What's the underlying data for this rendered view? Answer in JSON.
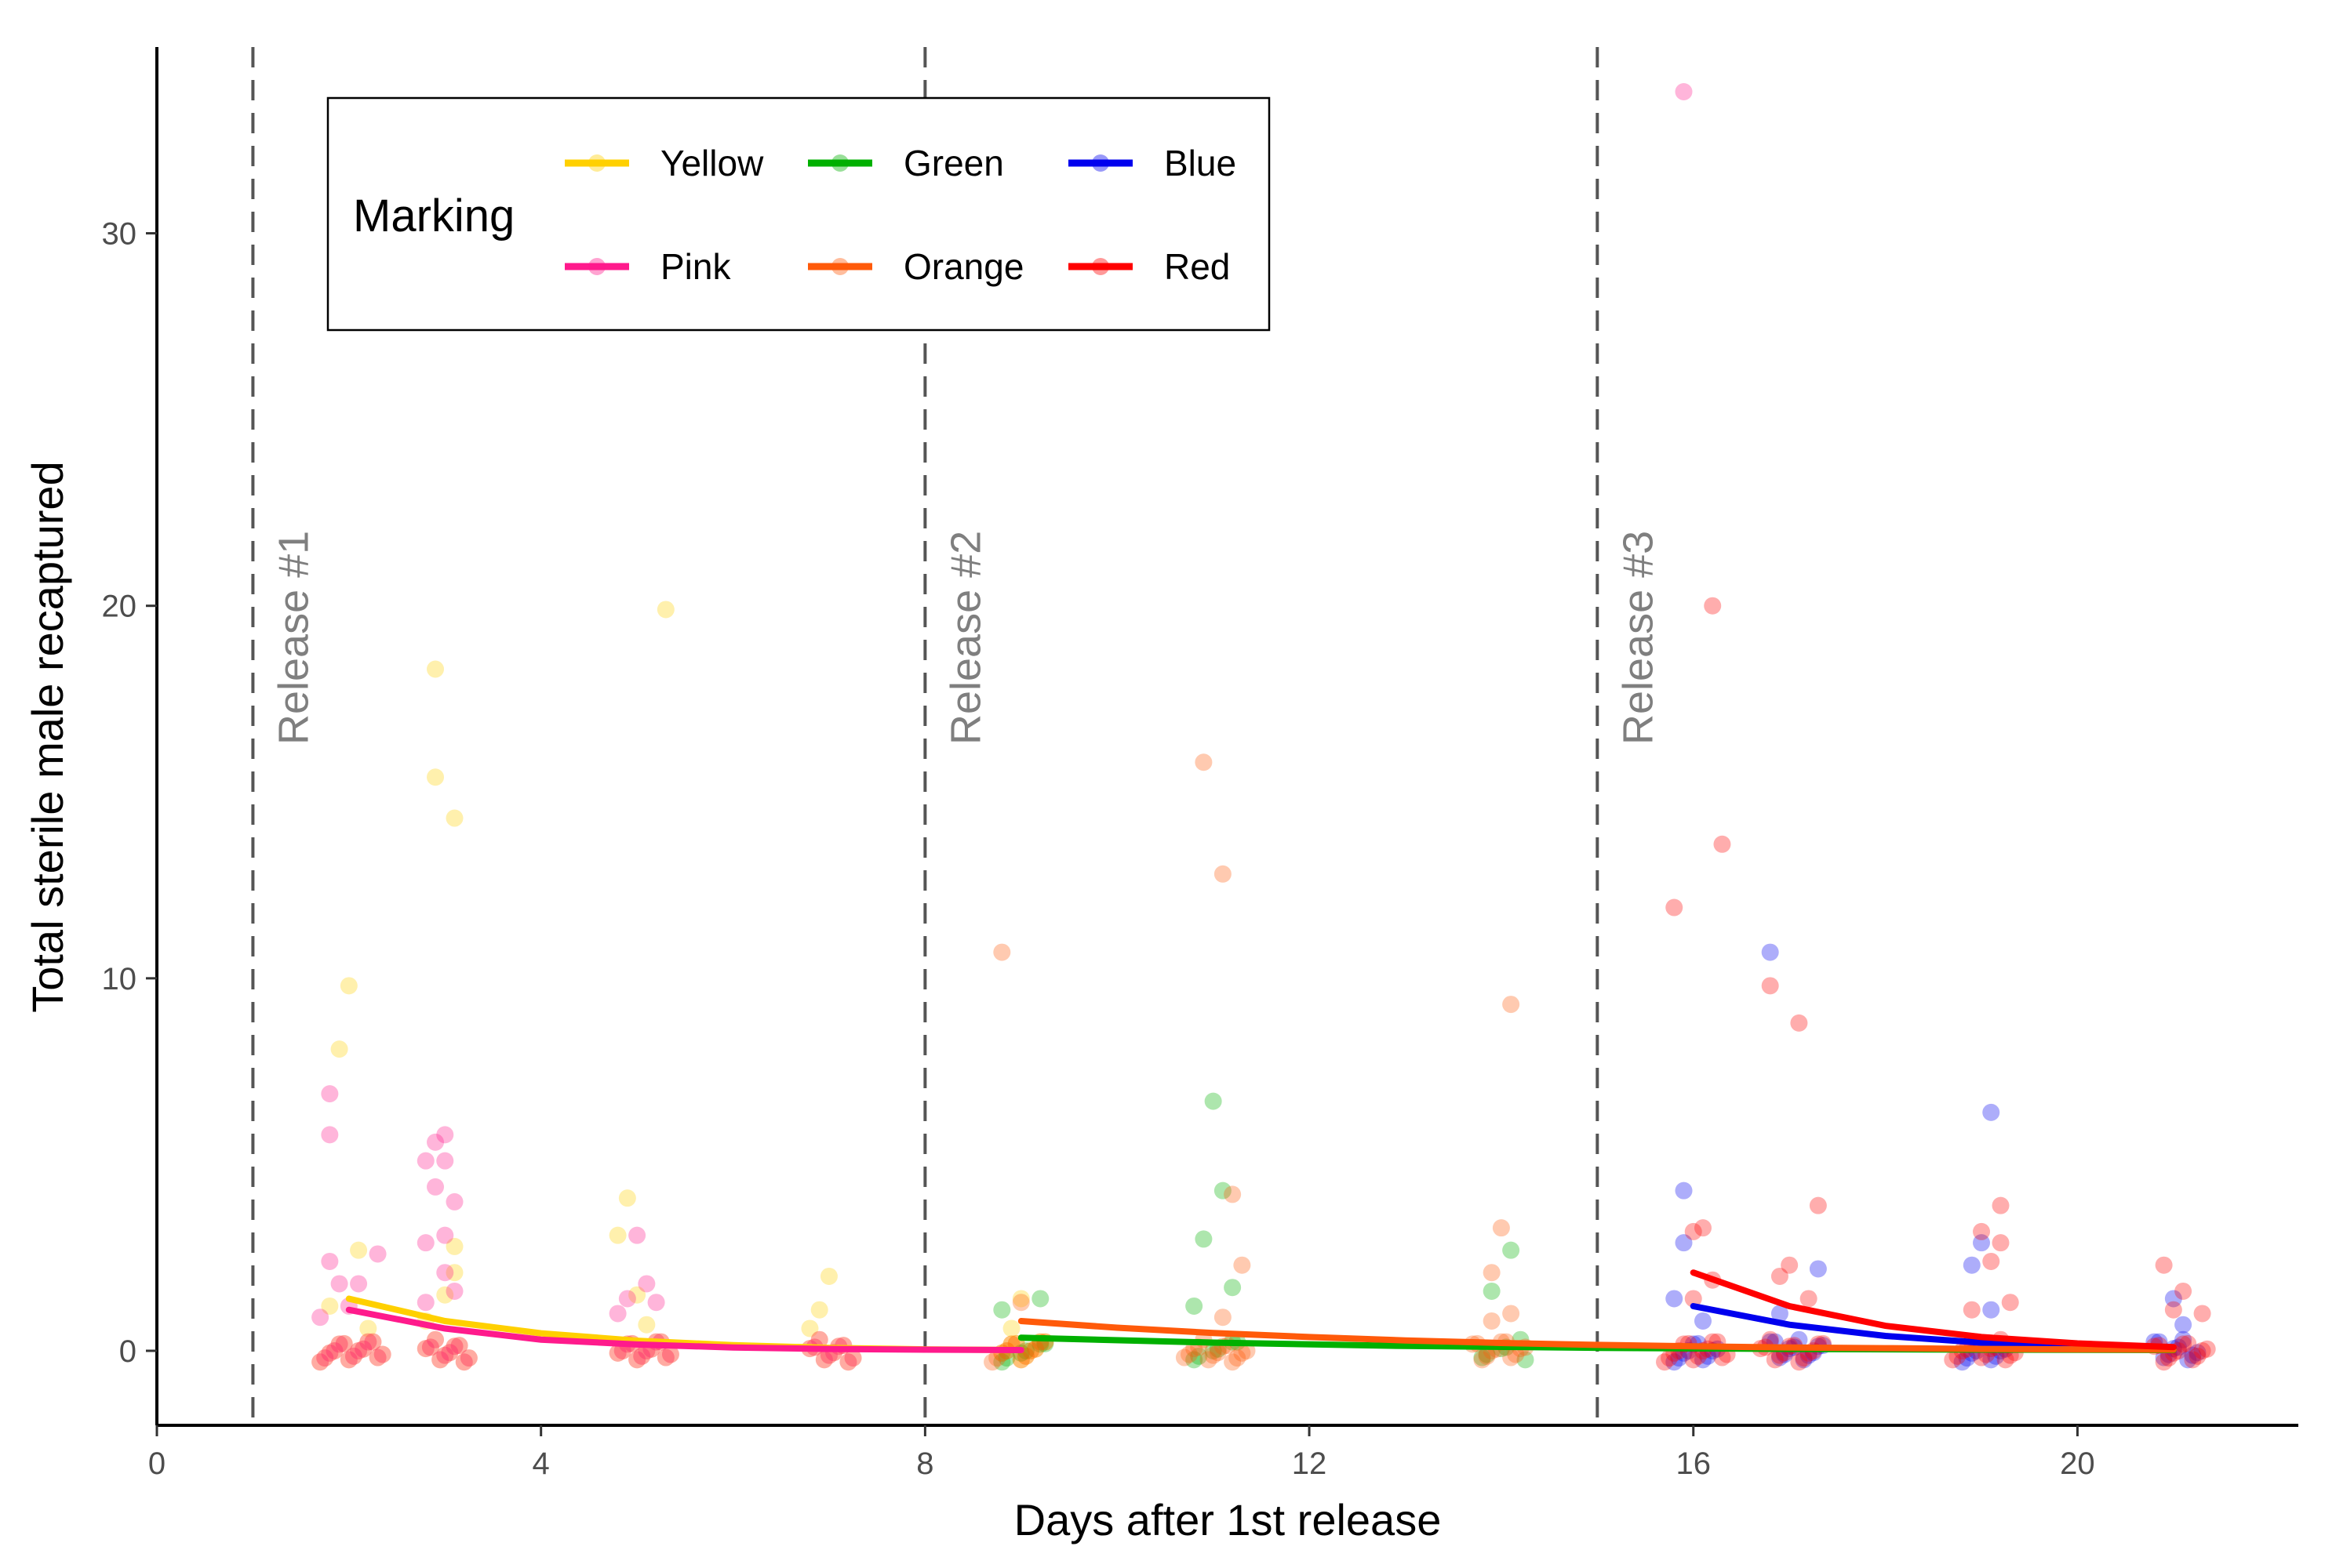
{
  "chart_data": {
    "type": "scatter",
    "xlabel": "Days after 1st release",
    "ylabel": "Total sterile male recaptured",
    "xlim": [
      0,
      22.3
    ],
    "ylim": [
      -2,
      35
    ],
    "x_ticks": [
      0,
      4,
      8,
      12,
      16,
      20
    ],
    "y_ticks": [
      0,
      10,
      20,
      30
    ],
    "grid": false,
    "legend": {
      "title": "Marking",
      "position": "top-left",
      "entries": [
        "Yellow",
        "Green",
        "Blue",
        "Pink",
        "Orange",
        "Red"
      ]
    },
    "releases": [
      {
        "label": "Release #1",
        "day": 1
      },
      {
        "label": "Release #2",
        "day": 8
      },
      {
        "label": "Release #3",
        "day": 15
      }
    ],
    "series": [
      {
        "name": "Yellow",
        "color": "#FFD000",
        "points": [
          [
            1.9,
            8.1
          ],
          [
            2.0,
            9.8
          ],
          [
            2.1,
            2.7
          ],
          [
            1.8,
            1.2
          ],
          [
            2.2,
            0.6
          ],
          [
            2.9,
            18.3
          ],
          [
            2.9,
            15.4
          ],
          [
            3.1,
            14.3
          ],
          [
            3.1,
            2.8
          ],
          [
            3.1,
            2.1
          ],
          [
            3.0,
            1.5
          ],
          [
            2.8,
            0.8
          ],
          [
            4.9,
            4.1
          ],
          [
            4.8,
            3.1
          ],
          [
            5.0,
            1.5
          ],
          [
            5.3,
            19.9
          ],
          [
            5.1,
            0.7
          ],
          [
            6.9,
            1.1
          ],
          [
            7.0,
            2.0
          ],
          [
            6.8,
            0.6
          ],
          [
            9.0,
            1.4
          ],
          [
            8.9,
            0.6
          ]
        ],
        "zeros": [
          1.7,
          1.8,
          1.9,
          2.0,
          2.1,
          2.2,
          2.3,
          2.8,
          2.9,
          3.0,
          3.1,
          3.2,
          4.8,
          4.9,
          5.0,
          5.1,
          5.2,
          5.3,
          6.8,
          6.9,
          7.0,
          7.1,
          7.2,
          8.8,
          8.9,
          9.0,
          9.1,
          9.2
        ],
        "fit": [
          [
            2,
            1.4
          ],
          [
            3,
            0.8
          ],
          [
            4,
            0.47
          ],
          [
            5,
            0.27
          ],
          [
            6,
            0.15
          ],
          [
            7,
            0.08
          ],
          [
            8,
            0.04
          ],
          [
            9,
            0.02
          ]
        ]
      },
      {
        "name": "Green",
        "color": "#00B000",
        "points": [
          [
            8.8,
            1.1
          ],
          [
            9.2,
            1.4
          ],
          [
            10.8,
            1.2
          ],
          [
            10.9,
            3.0
          ],
          [
            11.0,
            6.7
          ],
          [
            11.1,
            4.3
          ],
          [
            11.2,
            1.7
          ],
          [
            13.9,
            1.6
          ],
          [
            14.1,
            2.7
          ]
        ],
        "zeros": [
          8.8,
          9.0,
          9.2,
          10.8,
          11.0,
          11.2,
          13.8,
          14.0,
          14.2
        ],
        "fit": [
          [
            9,
            0.35
          ],
          [
            11,
            0.22
          ],
          [
            13,
            0.13
          ],
          [
            15,
            0.08
          ],
          [
            17,
            0.05
          ],
          [
            19,
            0.03
          ],
          [
            21,
            0.02
          ]
        ]
      },
      {
        "name": "Blue",
        "color": "#0000EE",
        "points": [
          [
            15.9,
            4.3
          ],
          [
            15.9,
            2.9
          ],
          [
            15.8,
            1.4
          ],
          [
            16.1,
            0.8
          ],
          [
            16.8,
            10.7
          ],
          [
            16.9,
            1.0
          ],
          [
            17.3,
            2.2
          ],
          [
            18.9,
            2.3
          ],
          [
            19.0,
            2.9
          ],
          [
            19.1,
            6.4
          ],
          [
            19.1,
            1.1
          ],
          [
            21.0,
            1.4
          ],
          [
            21.1,
            0.7
          ]
        ],
        "zeros": [
          15.8,
          15.9,
          16.0,
          16.1,
          16.2,
          16.8,
          16.9,
          17.0,
          17.1,
          17.2,
          17.3,
          18.8,
          18.9,
          19.0,
          19.1,
          19.2,
          20.8,
          20.9,
          21.0,
          21.1,
          21.2
        ],
        "fit": [
          [
            16,
            1.2
          ],
          [
            17,
            0.7
          ],
          [
            18,
            0.4
          ],
          [
            19,
            0.22
          ],
          [
            20,
            0.12
          ],
          [
            21,
            0.07
          ]
        ]
      },
      {
        "name": "Pink",
        "color": "#FF1A8C",
        "points": [
          [
            1.8,
            6.9
          ],
          [
            1.8,
            5.8
          ],
          [
            1.8,
            2.4
          ],
          [
            1.9,
            1.8
          ],
          [
            2.0,
            1.2
          ],
          [
            2.1,
            1.8
          ],
          [
            2.3,
            2.6
          ],
          [
            1.7,
            0.9
          ],
          [
            2.8,
            5.1
          ],
          [
            2.9,
            5.6
          ],
          [
            3.0,
            5.8
          ],
          [
            3.0,
            5.1
          ],
          [
            2.9,
            4.4
          ],
          [
            3.1,
            4.0
          ],
          [
            3.0,
            3.1
          ],
          [
            2.8,
            2.9
          ],
          [
            3.0,
            2.1
          ],
          [
            2.8,
            1.3
          ],
          [
            3.1,
            1.6
          ],
          [
            4.8,
            1.0
          ],
          [
            5.0,
            3.1
          ],
          [
            5.1,
            1.8
          ],
          [
            5.2,
            1.3
          ],
          [
            4.9,
            1.4
          ],
          [
            15.9,
            33.8
          ]
        ],
        "zeros": [
          1.7,
          1.8,
          1.9,
          2.0,
          2.1,
          2.2,
          2.3,
          2.8,
          2.9,
          3.0,
          3.1,
          3.2,
          4.8,
          4.9,
          5.0,
          5.1,
          5.2,
          5.3,
          6.8,
          6.9,
          7.0,
          7.1,
          7.2
        ],
        "fit": [
          [
            2,
            1.1
          ],
          [
            3,
            0.6
          ],
          [
            4,
            0.3
          ],
          [
            5,
            0.17
          ],
          [
            6,
            0.09
          ],
          [
            7,
            0.05
          ],
          [
            8,
            0.03
          ],
          [
            9,
            0.02
          ]
        ]
      },
      {
        "name": "Orange",
        "color": "#FF5A0A",
        "points": [
          [
            8.8,
            10.7
          ],
          [
            9.0,
            1.3
          ],
          [
            10.9,
            15.8
          ],
          [
            11.1,
            12.8
          ],
          [
            11.2,
            4.2
          ],
          [
            11.3,
            2.3
          ],
          [
            11.1,
            0.9
          ],
          [
            13.9,
            2.1
          ],
          [
            14.0,
            3.3
          ],
          [
            14.1,
            9.3
          ],
          [
            14.1,
            1.0
          ],
          [
            13.9,
            0.8
          ]
        ],
        "zeros": [
          8.7,
          8.8,
          8.9,
          9.0,
          9.1,
          9.2,
          10.7,
          10.8,
          10.9,
          11.0,
          11.1,
          11.2,
          11.3,
          13.7,
          13.8,
          13.9,
          14.0,
          14.1,
          14.2
        ],
        "fit": [
          [
            9,
            0.8
          ],
          [
            10,
            0.62
          ],
          [
            11,
            0.48
          ],
          [
            12,
            0.37
          ],
          [
            13,
            0.28
          ],
          [
            14,
            0.21
          ],
          [
            15,
            0.16
          ],
          [
            16,
            0.12
          ],
          [
            17,
            0.09
          ],
          [
            18,
            0.07
          ],
          [
            19,
            0.05
          ],
          [
            20,
            0.04
          ],
          [
            21,
            0.03
          ]
        ]
      },
      {
        "name": "Red",
        "color": "#FF0000",
        "points": [
          [
            15.8,
            11.9
          ],
          [
            16.2,
            20.0
          ],
          [
            16.3,
            13.6
          ],
          [
            16.0,
            3.2
          ],
          [
            16.1,
            3.3
          ],
          [
            16.2,
            1.9
          ],
          [
            16.0,
            1.4
          ],
          [
            16.8,
            9.8
          ],
          [
            17.1,
            8.8
          ],
          [
            17.0,
            2.3
          ],
          [
            17.3,
            3.9
          ],
          [
            17.2,
            1.4
          ],
          [
            16.9,
            2.0
          ],
          [
            18.9,
            1.1
          ],
          [
            19.0,
            3.2
          ],
          [
            19.1,
            2.4
          ],
          [
            19.2,
            2.9
          ],
          [
            19.2,
            3.9
          ],
          [
            19.3,
            1.3
          ],
          [
            20.9,
            2.3
          ],
          [
            21.0,
            1.1
          ],
          [
            21.1,
            1.6
          ],
          [
            21.3,
            1.0
          ]
        ],
        "zeros": [
          15.7,
          15.8,
          15.9,
          16.0,
          16.1,
          16.2,
          16.3,
          16.7,
          16.8,
          16.9,
          17.0,
          17.1,
          17.2,
          17.3,
          18.7,
          18.8,
          18.9,
          19.0,
          19.1,
          19.2,
          19.3,
          20.8,
          20.9,
          21.0,
          21.1,
          21.2,
          21.3
        ],
        "fit": [
          [
            16,
            2.1
          ],
          [
            17,
            1.2
          ],
          [
            18,
            0.67
          ],
          [
            19,
            0.37
          ],
          [
            20,
            0.2
          ],
          [
            21,
            0.1
          ]
        ]
      }
    ]
  }
}
